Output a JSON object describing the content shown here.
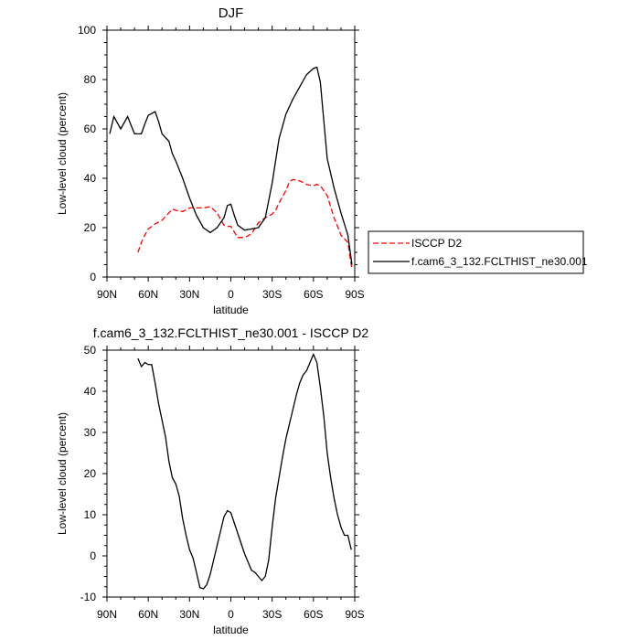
{
  "chart_data": [
    {
      "type": "line",
      "title": "DJF",
      "xlabel": "latitude",
      "ylabel": "Low-level cloud (percent)",
      "xlim": [
        90,
        -90
      ],
      "ylim": [
        0,
        100
      ],
      "x_ticks": [
        90,
        60,
        30,
        0,
        -30,
        -60,
        -90
      ],
      "x_tick_labels": [
        "90N",
        "60N",
        "30N",
        "0",
        "30S",
        "60S",
        "90S"
      ],
      "y_ticks": [
        0,
        20,
        40,
        60,
        80,
        100
      ],
      "y_tick_labels": [
        "0",
        "20",
        "40",
        "60",
        "80",
        "100"
      ],
      "legend_placement": "right-outside",
      "series": [
        {
          "name": "ISCCP D2",
          "color": "#ff0000",
          "dash": "dashed",
          "x": [
            67.5,
            65,
            62.5,
            60,
            55,
            50,
            45,
            42.5,
            40,
            35,
            30,
            25,
            20,
            15,
            10,
            5,
            2.5,
            0,
            -5,
            -10,
            -15,
            -20,
            -25,
            -30,
            -32.5,
            -35,
            -40,
            -42.5,
            -45,
            -50,
            -55,
            -60,
            -62.5,
            -65,
            -70,
            -75,
            -80,
            -85,
            -88
          ],
          "y": [
            10,
            14,
            17,
            19.5,
            21.5,
            23,
            26,
            27.5,
            27,
            26.5,
            28,
            28,
            28,
            28.5,
            26,
            21,
            20.5,
            20.5,
            16,
            16,
            17.5,
            22,
            24,
            25.5,
            27,
            30,
            35,
            38.5,
            39.5,
            39,
            37.5,
            37,
            37.5,
            37,
            33,
            24,
            17,
            14,
            3
          ]
        },
        {
          "name": "f.cam6_3_132.FCLTHIST_ne30.001",
          "color": "#000000",
          "dash": "solid",
          "x": [
            88,
            85,
            80,
            75,
            70,
            65,
            62.5,
            60,
            55,
            52.5,
            50,
            45,
            42.5,
            40,
            35,
            30,
            25,
            20,
            15,
            10,
            5,
            2.5,
            0,
            -2.5,
            -5,
            -10,
            -15,
            -20,
            -25,
            -30,
            -35,
            -40,
            -45,
            -50,
            -55,
            -60,
            -62.5,
            -65,
            -70,
            -75,
            -80,
            -85,
            -88
          ],
          "y": [
            58,
            65,
            60,
            65,
            58,
            58,
            62,
            65.5,
            67,
            63,
            58,
            55,
            50,
            47,
            40,
            32,
            25,
            20,
            18,
            20,
            24,
            29,
            29.5,
            25,
            21,
            19,
            19.5,
            20,
            24,
            38,
            56,
            66,
            72,
            77,
            82,
            84.5,
            85,
            79,
            48,
            36,
            26,
            17,
            5
          ]
        }
      ]
    },
    {
      "type": "line",
      "title": "f.cam6_3_132.FCLTHIST_ne30.001 - ISCCP D2",
      "xlabel": "latitude",
      "ylabel": "Low-level cloud (percent)",
      "xlim": [
        90,
        -90
      ],
      "ylim": [
        -10,
        50
      ],
      "x_ticks": [
        90,
        60,
        30,
        0,
        -30,
        -60,
        -90
      ],
      "x_tick_labels": [
        "90N",
        "60N",
        "30N",
        "0",
        "30S",
        "60S",
        "90S"
      ],
      "y_ticks": [
        -10,
        0,
        10,
        20,
        30,
        40,
        50
      ],
      "y_tick_labels": [
        "-10",
        "0",
        "10",
        "20",
        "30",
        "40",
        "50"
      ],
      "series": [
        {
          "color": "#000000",
          "dash": "solid",
          "x": [
            67.5,
            65,
            62.5,
            60,
            57.5,
            55,
            52.5,
            50,
            47.5,
            45,
            42.5,
            40,
            37.5,
            35,
            32.5,
            30,
            27.5,
            25,
            22.5,
            20,
            17.5,
            15,
            12.5,
            10,
            7.5,
            5,
            2.5,
            0,
            -2.5,
            -5,
            -7.5,
            -10,
            -12.5,
            -15,
            -17.5,
            -20,
            -22.5,
            -25,
            -27.5,
            -30,
            -32.5,
            -35,
            -37.5,
            -40,
            -42.5,
            -45,
            -47.5,
            -50,
            -52.5,
            -55,
            -57.5,
            -60,
            -62.5,
            -65,
            -67.5,
            -70,
            -72.5,
            -75,
            -77.5,
            -80,
            -82.5,
            -85,
            -87.5
          ],
          "y": [
            48,
            46,
            47,
            46.5,
            46.5,
            42,
            37,
            33,
            29,
            23,
            19,
            17.5,
            14.5,
            9,
            5,
            1.5,
            -0.5,
            -4,
            -7.7,
            -8,
            -7,
            -4.5,
            -1,
            2.5,
            6,
            9.5,
            11,
            10.5,
            8,
            5.5,
            3,
            0.5,
            -1.5,
            -3.5,
            -4,
            -5,
            -6,
            -5,
            -1,
            7,
            14,
            19,
            24,
            28.5,
            32,
            35.5,
            39,
            42,
            44,
            45,
            47,
            49,
            47,
            41,
            34,
            25,
            19,
            14,
            10,
            7,
            5,
            5,
            1.5
          ]
        }
      ]
    }
  ]
}
